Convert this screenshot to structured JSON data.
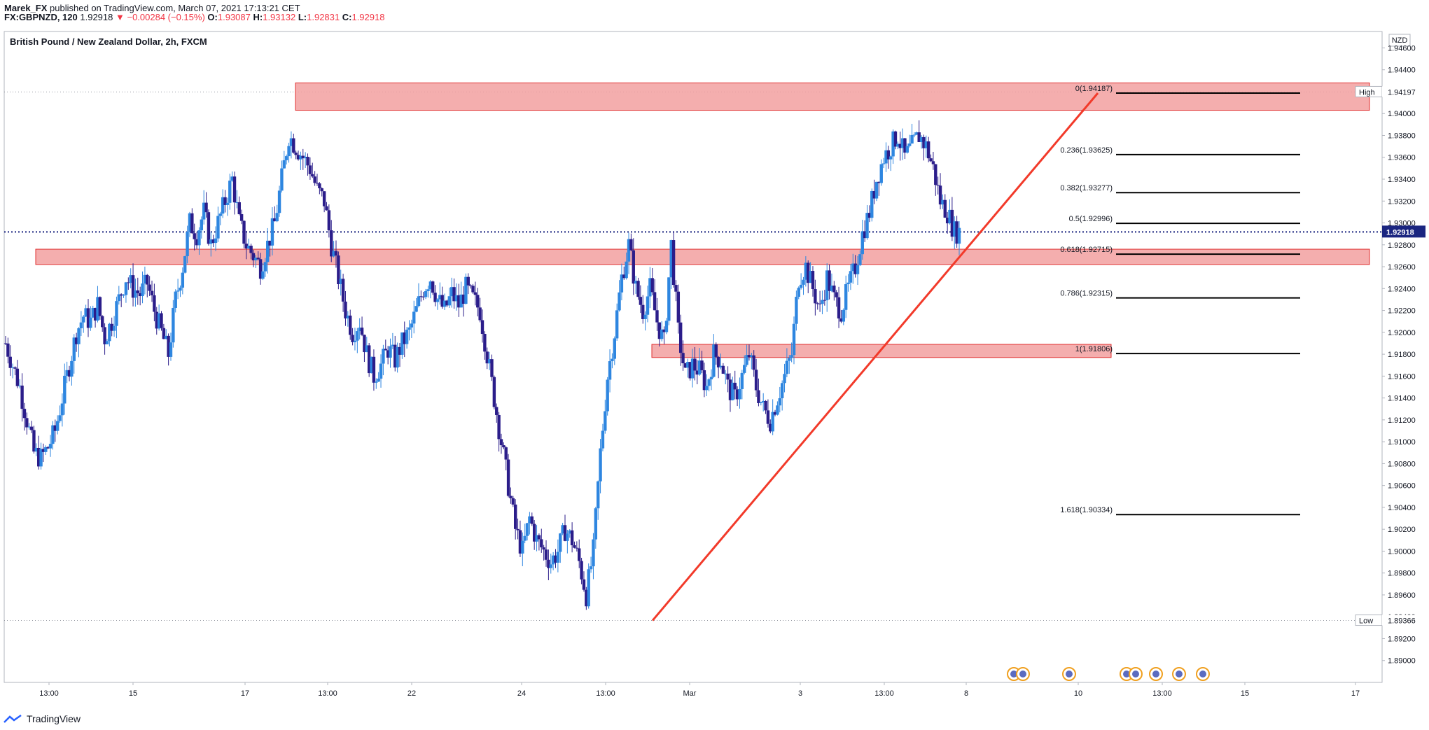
{
  "header": {
    "author": "Marek_FX",
    "published": "published on TradingView.com, March 07, 2021 17:13:21 CET",
    "symbol": "FX:GBPNZD, 120",
    "price": "1.92918",
    "change": "▼ −0.00284 (−0.15%)",
    "o_label": "O:",
    "o": "1.93087",
    "h_label": "H:",
    "h": "1.93132",
    "l_label": "L:",
    "l": "1.92831",
    "c_label": "C:",
    "c": "1.92918"
  },
  "footer": {
    "brand": "TradingView"
  },
  "colors": {
    "up": "#2e86e0",
    "down": "#2b1d8a",
    "zone_fill": "#f2a0a0",
    "zone_border": "#e03030",
    "trendline": "#f23a2a",
    "fib": "#000000",
    "price_label_bg": "#1a2580"
  },
  "chart_data": {
    "type": "candlestick",
    "title": "British Pound / New Zealand Dollar, 2h, FXCM",
    "currency": "NZD",
    "ylim": [
      1.888,
      1.9475
    ],
    "y_ticks": [
      "1.94600",
      "1.94400",
      "1.94200",
      "1.94000",
      "1.93800",
      "1.93600",
      "1.93400",
      "1.93200",
      "1.93000",
      "1.92800",
      "1.92600",
      "1.92400",
      "1.92200",
      "1.92000",
      "1.91800",
      "1.91600",
      "1.91400",
      "1.91200",
      "1.91000",
      "1.90800",
      "1.90600",
      "1.90400",
      "1.90200",
      "1.90000",
      "1.89800",
      "1.89600",
      "1.89400",
      "1.89200",
      "1.89000"
    ],
    "x_ticks": [
      "13:00",
      "15",
      "17",
      "13:00",
      "22",
      "24",
      "13:00",
      "Mar",
      "3",
      "13:00",
      "8",
      "10",
      "13:00",
      "15",
      "17"
    ],
    "current_price": {
      "label": "1.92918",
      "value": 1.92918
    },
    "high_marker": {
      "label": "High",
      "value": "1.94197"
    },
    "low_marker": {
      "label": "Low",
      "value": "1.89366"
    },
    "fib_levels": [
      {
        "ratio": "0",
        "price": "1.94187",
        "text": "0(1.94187)"
      },
      {
        "ratio": "0.236",
        "price": "1.93625",
        "text": "0.236(1.93625)"
      },
      {
        "ratio": "0.382",
        "price": "1.93277",
        "text": "0.382(1.93277)"
      },
      {
        "ratio": "0.5",
        "price": "1.92996",
        "text": "0.5(1.92996)"
      },
      {
        "ratio": "0.618",
        "price": "1.92715",
        "text": "0.618(1.92715)"
      },
      {
        "ratio": "0.786",
        "price": "1.92315",
        "text": "0.786(1.92315)"
      },
      {
        "ratio": "1",
        "price": "1.91806",
        "text": "1(1.91806)"
      },
      {
        "ratio": "1.618",
        "price": "1.90334",
        "text": "1.618(1.90334)"
      }
    ],
    "zones": [
      {
        "from": 1.9403,
        "to": 1.9428
      },
      {
        "from": 1.9262,
        "to": 1.9276
      },
      {
        "from": 1.9177,
        "to": 1.9189
      }
    ],
    "trendline": {
      "from": 1.89366,
      "to": 1.94187
    },
    "price_path": [
      1.919,
      1.917,
      1.915,
      1.912,
      1.909,
      1.9085,
      1.9095,
      1.911,
      1.914,
      1.917,
      1.92,
      1.9215,
      1.921,
      1.9225,
      1.9195,
      1.921,
      1.923,
      1.925,
      1.924,
      1.9235,
      1.9245,
      1.922,
      1.92,
      1.918,
      1.923,
      1.926,
      1.93,
      1.929,
      1.931,
      1.928,
      1.93,
      1.932,
      1.934,
      1.93,
      1.928,
      1.927,
      1.926,
      1.928,
      1.93,
      1.934,
      1.938,
      1.937,
      1.936,
      1.935,
      1.933,
      1.932,
      1.928,
      1.925,
      1.922,
      1.92,
      1.921,
      1.918,
      1.916,
      1.917,
      1.9185,
      1.9175,
      1.919,
      1.92,
      1.922,
      1.924,
      1.925,
      1.923,
      1.922,
      1.9235,
      1.9225,
      1.924,
      1.923,
      1.922,
      1.918,
      1.914,
      1.91,
      1.906,
      1.902,
      1.9,
      1.903,
      1.901,
      1.9,
      1.899,
      1.9,
      1.902,
      1.901,
      1.899,
      1.896,
      1.9,
      1.909,
      1.916,
      1.92,
      1.925,
      1.928,
      1.924,
      1.922,
      1.924,
      1.921,
      1.919,
      1.928,
      1.92,
      1.916,
      1.917,
      1.9165,
      1.915,
      1.918,
      1.9175,
      1.915,
      1.914,
      1.916,
      1.918,
      1.915,
      1.913,
      1.912,
      1.914,
      1.916,
      1.918,
      1.925,
      1.926,
      1.924,
      1.922,
      1.925,
      1.923,
      1.922,
      1.924,
      1.926,
      1.929,
      1.931,
      1.934,
      1.936,
      1.937,
      1.938,
      1.936,
      1.937,
      1.938,
      1.937,
      1.935,
      1.932,
      1.931,
      1.9292
    ]
  }
}
